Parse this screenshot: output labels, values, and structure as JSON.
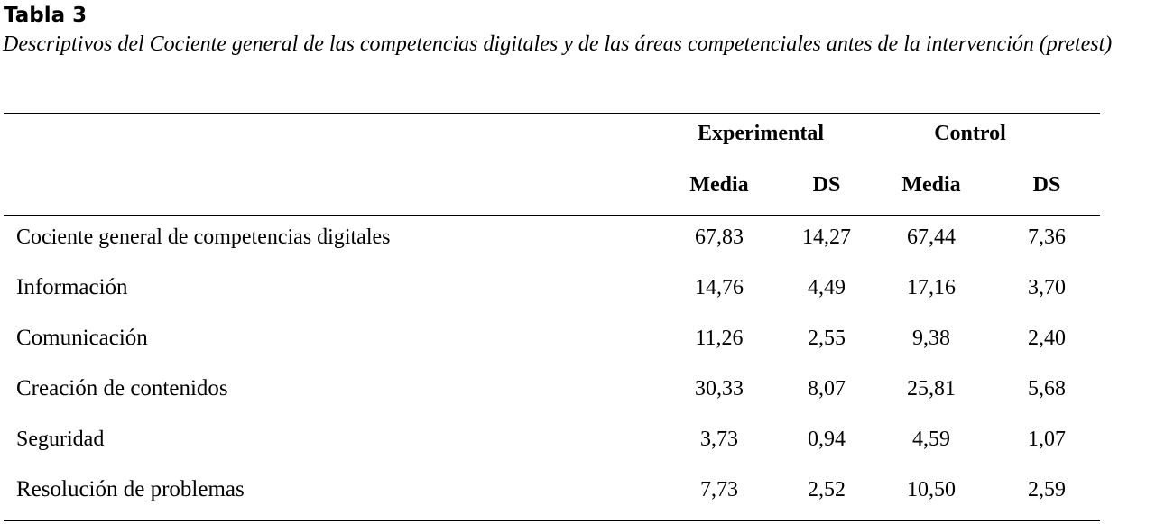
{
  "table_label": "Tabla 3",
  "caption": "Descriptivos del Cociente general de las competencias digitales y de las áreas competenciales antes de la intervención (pretest)",
  "groups": [
    {
      "label": "Experimental"
    },
    {
      "label": "Control"
    }
  ],
  "subheaders": [
    "Media",
    "DS",
    "Media",
    "DS"
  ],
  "rows": [
    {
      "label": "Cociente general de competencias digitales",
      "values": [
        "67,83",
        "14,27",
        "67,44",
        "7,36"
      ]
    },
    {
      "label": "Información",
      "values": [
        "14,76",
        "4,49",
        "17,16",
        "3,70"
      ]
    },
    {
      "label": "Comunicación",
      "values": [
        "11,26",
        "2,55",
        "9,38",
        "2,40"
      ]
    },
    {
      "label": "Creación de contenidos",
      "values": [
        "30,33",
        "8,07",
        "25,81",
        "5,68"
      ]
    },
    {
      "label": "Seguridad",
      "values": [
        "3,73",
        "0,94",
        "4,59",
        "1,07"
      ]
    },
    {
      "label": "Resolución de problemas",
      "values": [
        "7,73",
        "2,52",
        "10,50",
        "2,59"
      ]
    }
  ]
}
